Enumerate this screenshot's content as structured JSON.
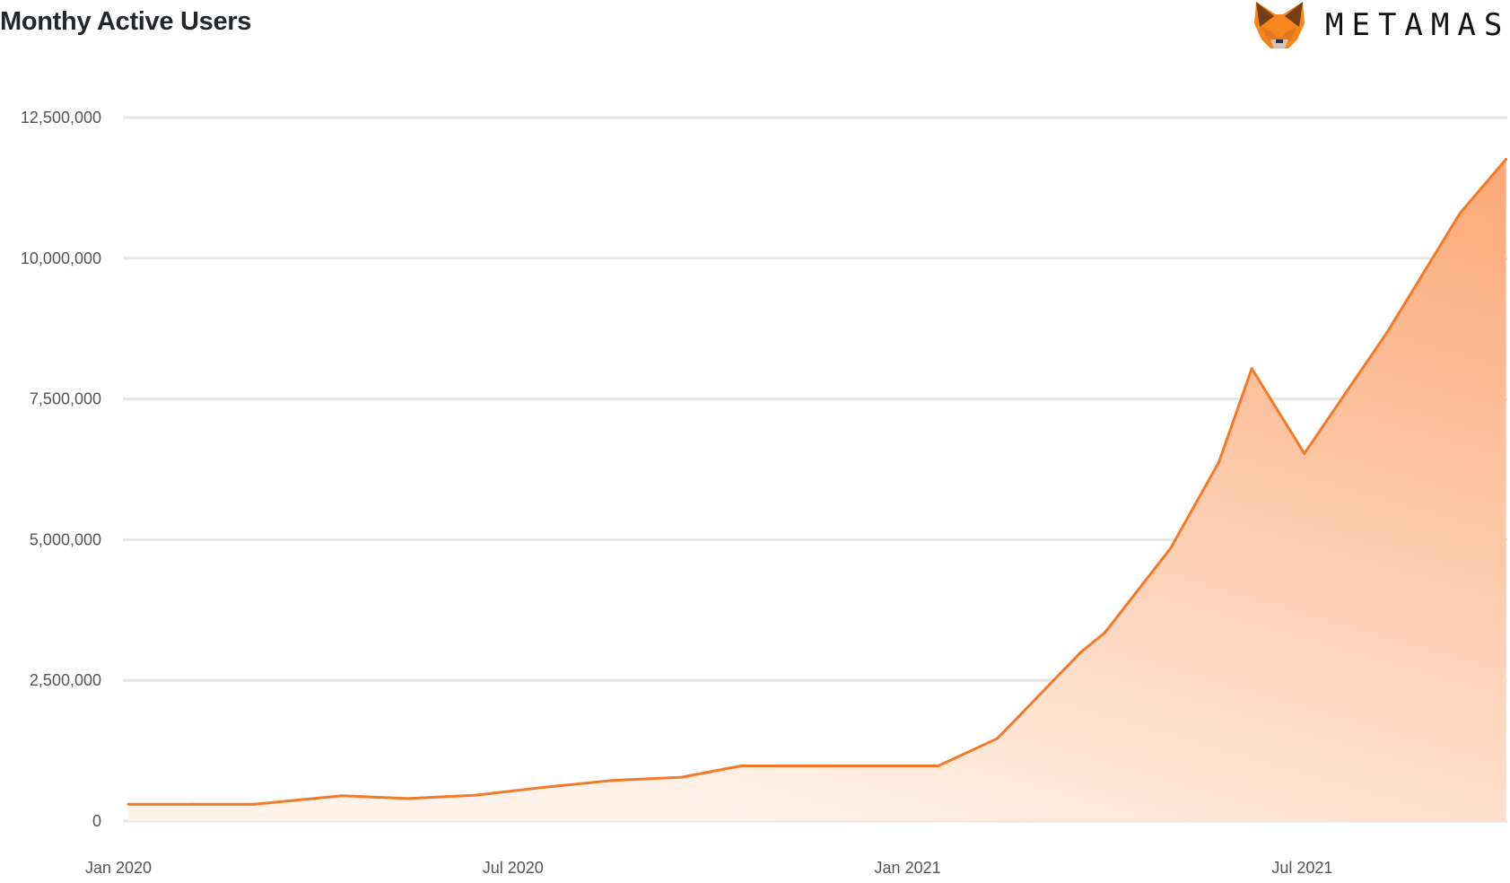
{
  "chart_data": {
    "type": "area",
    "title": "Monthy Active Users",
    "xlabel": "",
    "ylabel": "",
    "ylim": [
      0,
      12500000
    ],
    "y_ticks": [
      "0",
      "2,500,000",
      "5,000,000",
      "7,500,000",
      "10,000,000",
      "12,500,000"
    ],
    "y_tick_values": [
      0,
      2500000,
      5000000,
      7500000,
      10000000,
      12500000
    ],
    "x_ticks": [
      "Jan 2020",
      "Jul 2020",
      "Jan 2021",
      "Jul 2021"
    ],
    "x_tick_dates": [
      "2020-01",
      "2020-07",
      "2021-01",
      "2021-07"
    ],
    "grid": true,
    "legend": "none",
    "series": [
      {
        "x": [
          "2020-01-05",
          "2020-02-05",
          "2020-03-03",
          "2020-04-13",
          "2020-05-13",
          "2020-06-14",
          "2020-07-15",
          "2020-08-16",
          "2020-09-18",
          "2020-10-15",
          "2020-11-15",
          "2020-12-15",
          "2021-01-15",
          "2021-02-12",
          "2021-03-20",
          "2021-04-01",
          "2021-05-01",
          "2021-05-23",
          "2021-06-08",
          "2021-07-02",
          "2021-08-10",
          "2021-09-13",
          "2021-10-04"
        ],
        "values": [
          300000,
          300000,
          300000,
          450000,
          400000,
          460000,
          600000,
          720000,
          780000,
          980000,
          980000,
          980000,
          980000,
          1470000,
          3000000,
          3350000,
          4850000,
          6380000,
          8040000,
          6530000,
          8700000,
          10800000,
          11760000
        ]
      }
    ],
    "colors": {
      "line": "#f37a2a",
      "fill_top": "#fba877",
      "fill_bottom": "#fef3ea",
      "grid": "#e6e6e6"
    }
  },
  "brand": {
    "name": "METAMASK"
  }
}
